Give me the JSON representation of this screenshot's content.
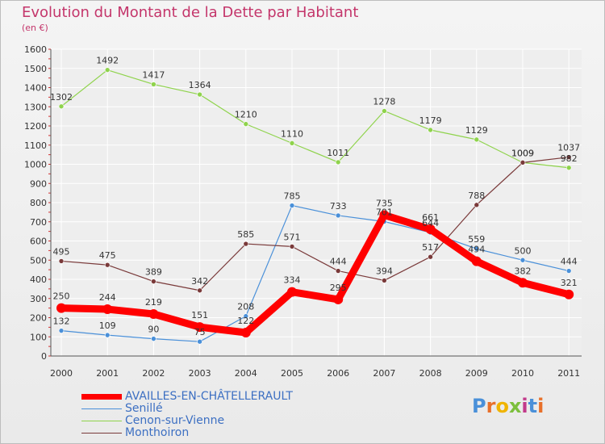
{
  "title": "Evolution du Montant de la Dette par Habitant",
  "unit": "(en €)",
  "logo": "Proxiti",
  "chart_data": {
    "type": "line",
    "categories": [
      "2000",
      "2001",
      "2002",
      "2003",
      "2004",
      "2005",
      "2006",
      "2007",
      "2008",
      "2009",
      "2010",
      "2011"
    ],
    "ylim": [
      0,
      1600
    ],
    "yticks": [
      0,
      100,
      200,
      300,
      400,
      500,
      600,
      700,
      800,
      900,
      1000,
      1100,
      1200,
      1300,
      1400,
      1500,
      1600
    ],
    "grid": true,
    "legend_position": "bottom-left",
    "series": [
      {
        "name": "AVAILLES-EN-CHÂTELLERAULT",
        "color": "#ff0000",
        "highlight": true,
        "values": [
          250,
          244,
          219,
          151,
          122,
          334,
          295,
          735,
          661,
          494,
          382,
          321
        ],
        "labels": [
          "250",
          "244",
          "219",
          "151",
          "122",
          "334",
          "295",
          "735",
          "661",
          "494",
          "382",
          "321"
        ]
      },
      {
        "name": "Senillé",
        "color": "#4a90d9",
        "values": [
          132,
          109,
          90,
          75,
          208,
          785,
          733,
          701,
          644,
          559,
          500,
          444
        ],
        "labels": [
          "132",
          "109",
          "90",
          "75",
          "208",
          "785",
          "733",
          "701",
          "644",
          "559",
          "500",
          "444"
        ]
      },
      {
        "name": "Cenon-sur-Vienne",
        "color": "#8fd34c",
        "values": [
          1302,
          1492,
          1417,
          1364,
          1210,
          1110,
          1011,
          1278,
          1179,
          1129,
          1009,
          982
        ],
        "labels": [
          "1302",
          "1492",
          "1417",
          "1364",
          "1210",
          "1110",
          "1011",
          "1278",
          "1179",
          "1129",
          "1009",
          "982"
        ]
      },
      {
        "name": "Monthoiron",
        "color": "#7a3a3a",
        "values": [
          495,
          475,
          389,
          342,
          585,
          571,
          444,
          394,
          517,
          788,
          1009,
          1037
        ],
        "labels": [
          "495",
          "475",
          "389",
          "342",
          "585",
          "571",
          "444",
          "394",
          "517",
          "788",
          "1009",
          "1037"
        ]
      }
    ]
  }
}
